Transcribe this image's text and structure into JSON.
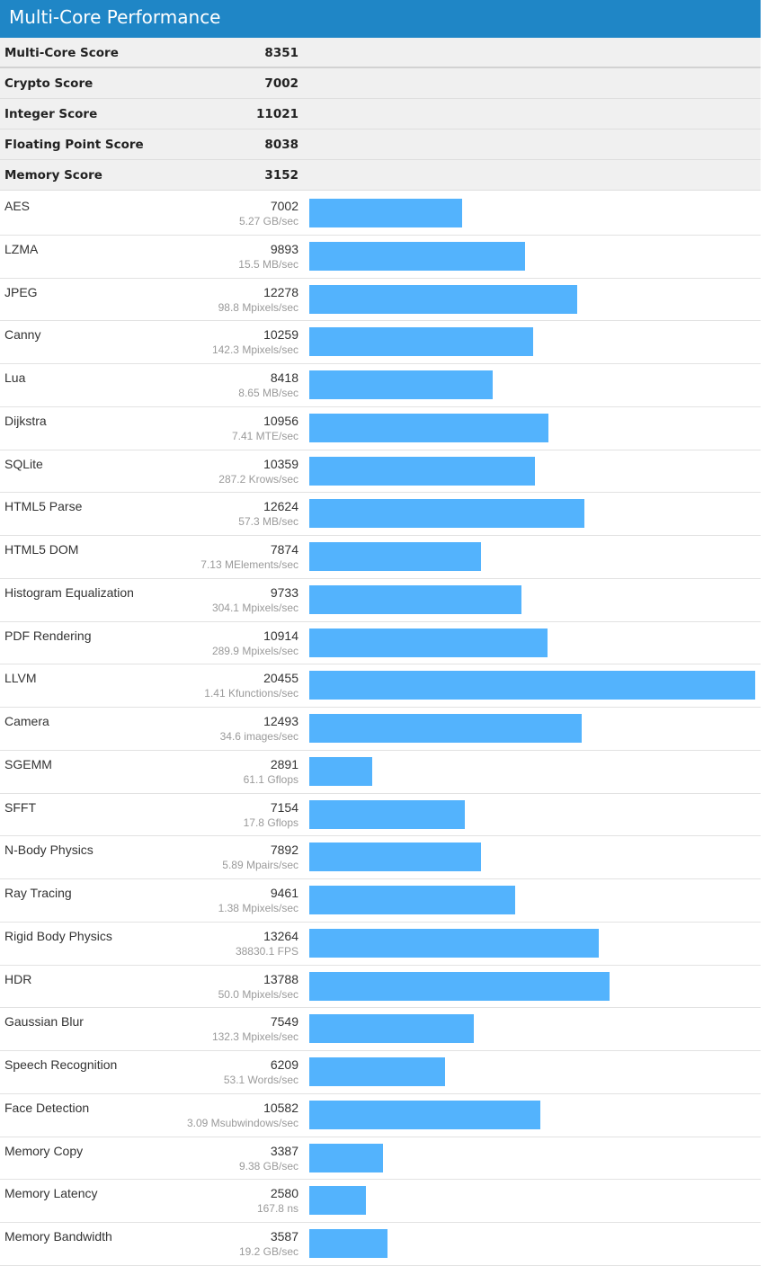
{
  "header": {
    "title": "Multi-Core Performance"
  },
  "colors": {
    "header_bg": "#1f86c6",
    "bar": "#53b3fd"
  },
  "summary": [
    {
      "name": "Multi-Core Score",
      "score": "8351"
    },
    {
      "name": "Crypto Score",
      "score": "7002"
    },
    {
      "name": "Integer Score",
      "score": "11021"
    },
    {
      "name": "Floating Point Score",
      "score": "8038"
    },
    {
      "name": "Memory Score",
      "score": "3152"
    }
  ],
  "bar_scale_max": 20455,
  "benchmarks": [
    {
      "name": "AES",
      "score": "7002",
      "unit": "5.27 GB/sec"
    },
    {
      "name": "LZMA",
      "score": "9893",
      "unit": "15.5 MB/sec"
    },
    {
      "name": "JPEG",
      "score": "12278",
      "unit": "98.8 Mpixels/sec"
    },
    {
      "name": "Canny",
      "score": "10259",
      "unit": "142.3 Mpixels/sec"
    },
    {
      "name": "Lua",
      "score": "8418",
      "unit": "8.65 MB/sec"
    },
    {
      "name": "Dijkstra",
      "score": "10956",
      "unit": "7.41 MTE/sec"
    },
    {
      "name": "SQLite",
      "score": "10359",
      "unit": "287.2 Krows/sec"
    },
    {
      "name": "HTML5 Parse",
      "score": "12624",
      "unit": "57.3 MB/sec"
    },
    {
      "name": "HTML5 DOM",
      "score": "7874",
      "unit": "7.13 MElements/sec"
    },
    {
      "name": "Histogram Equalization",
      "score": "9733",
      "unit": "304.1 Mpixels/sec"
    },
    {
      "name": "PDF Rendering",
      "score": "10914",
      "unit": "289.9 Mpixels/sec"
    },
    {
      "name": "LLVM",
      "score": "20455",
      "unit": "1.41 Kfunctions/sec"
    },
    {
      "name": "Camera",
      "score": "12493",
      "unit": "34.6 images/sec"
    },
    {
      "name": "SGEMM",
      "score": "2891",
      "unit": "61.1 Gflops"
    },
    {
      "name": "SFFT",
      "score": "7154",
      "unit": "17.8 Gflops"
    },
    {
      "name": "N-Body Physics",
      "score": "7892",
      "unit": "5.89 Mpairs/sec"
    },
    {
      "name": "Ray Tracing",
      "score": "9461",
      "unit": "1.38 Mpixels/sec"
    },
    {
      "name": "Rigid Body Physics",
      "score": "13264",
      "unit": "38830.1 FPS"
    },
    {
      "name": "HDR",
      "score": "13788",
      "unit": "50.0 Mpixels/sec"
    },
    {
      "name": "Gaussian Blur",
      "score": "7549",
      "unit": "132.3 Mpixels/sec"
    },
    {
      "name": "Speech Recognition",
      "score": "6209",
      "unit": "53.1 Words/sec"
    },
    {
      "name": "Face Detection",
      "score": "10582",
      "unit": "3.09 Msubwindows/sec"
    },
    {
      "name": "Memory Copy",
      "score": "3387",
      "unit": "9.38 GB/sec"
    },
    {
      "name": "Memory Latency",
      "score": "2580",
      "unit": "167.8 ns"
    },
    {
      "name": "Memory Bandwidth",
      "score": "3587",
      "unit": "19.2 GB/sec"
    }
  ]
}
